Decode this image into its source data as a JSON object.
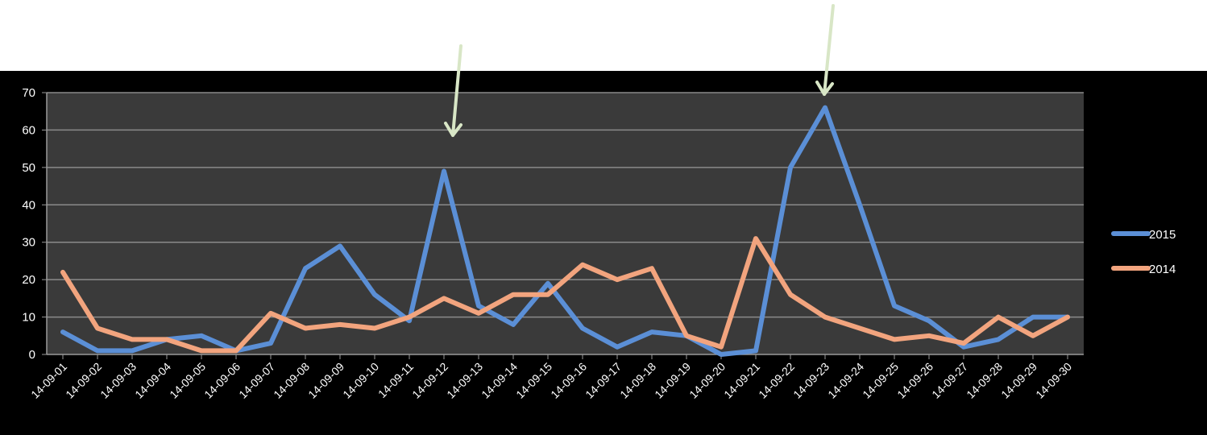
{
  "chart_data": {
    "type": "line",
    "title": "",
    "xlabel": "",
    "ylabel": "",
    "categories": [
      "14-09-01",
      "14-09-02",
      "14-09-03",
      "14-09-04",
      "14-09-05",
      "14-09-06",
      "14-09-07",
      "14-09-08",
      "14-09-09",
      "14-09-10",
      "14-09-11",
      "14-09-12",
      "14-09-13",
      "14-09-14",
      "14-09-15",
      "14-09-16",
      "14-09-17",
      "14-09-18",
      "14-09-19",
      "14-09-20",
      "14-09-21",
      "14-09-22",
      "14-09-23",
      "14-09-24",
      "14-09-25",
      "14-09-26",
      "14-09-27",
      "14-09-28",
      "14-09-29",
      "14-09-30"
    ],
    "series": [
      {
        "name": "2015",
        "color": "#5b8fd6",
        "values": [
          6,
          1,
          1,
          4,
          5,
          1,
          3,
          23,
          29,
          16,
          9,
          49,
          13,
          8,
          19,
          7,
          2,
          6,
          5,
          0,
          1,
          50,
          66,
          40,
          13,
          9,
          2,
          4,
          10,
          10
        ]
      },
      {
        "name": "2014",
        "color": "#f2a47e",
        "values": [
          22,
          7,
          4,
          4,
          1,
          1,
          11,
          7,
          8,
          7,
          10,
          15,
          11,
          16,
          16,
          24,
          20,
          23,
          5,
          2,
          31,
          16,
          10,
          7,
          4,
          5,
          3,
          10,
          5,
          10
        ]
      }
    ],
    "ylim": [
      0,
      70
    ],
    "yticks": [
      0,
      10,
      20,
      30,
      40,
      50,
      60,
      70
    ],
    "grid": true,
    "legend_position": "right",
    "annotations": [
      {
        "type": "arrow",
        "category": "14-09-12"
      },
      {
        "type": "arrow",
        "category": "14-09-23"
      }
    ]
  },
  "colors": {
    "background": "#000000",
    "plot_area": "#3a3a3a",
    "gridline": "#8a8a8a",
    "axis_text": "#ffffff",
    "arrow": "#d8e6c6"
  }
}
